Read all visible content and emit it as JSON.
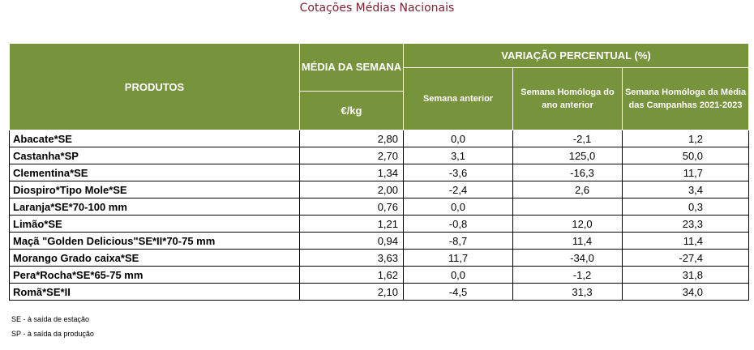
{
  "title": "Cotações Médias Nacionais",
  "headers": {
    "produtos": "PRODUTOS",
    "media_semana": "MÉDIA DA SEMANA",
    "unit": "€/kg",
    "variacao": "VARIAÇÃO PERCENTUAL (%)",
    "semana_anterior": "Semana anterior",
    "semana_homologa": "Semana Homóloga do ano anterior",
    "semana_homologa_media": "Semana Homóloga da Média das Campanhas 2021-2023"
  },
  "rows": [
    {
      "produto": "Abacate*SE",
      "media": "2,80",
      "sem_ant": "0,0",
      "homologa": "-2,1",
      "homologa_media": "1,2"
    },
    {
      "produto": "Castanha*SP",
      "media": "2,70",
      "sem_ant": "3,1",
      "homologa": "125,0",
      "homologa_media": "50,0"
    },
    {
      "produto": "Clementina*SE",
      "media": "1,34",
      "sem_ant": "-3,6",
      "homologa": "-16,3",
      "homologa_media": "11,7"
    },
    {
      "produto": "Diospiro*Tipo Mole*SE",
      "media": "2,00",
      "sem_ant": "-2,4",
      "homologa": "2,6",
      "homologa_media": "3,4"
    },
    {
      "produto": "Laranja*SE*70-100 mm",
      "media": "0,76",
      "sem_ant": "0,0",
      "homologa": "",
      "homologa_media": "0,3"
    },
    {
      "produto": "Limão*SE",
      "media": "1,21",
      "sem_ant": "-0,8",
      "homologa": "12,0",
      "homologa_media": "23,3"
    },
    {
      "produto": "Maçã \"Golden Delicious\"SE*II*70-75 mm",
      "media": "0,94",
      "sem_ant": "-8,7",
      "homologa": "11,4",
      "homologa_media": "11,4"
    },
    {
      "produto": "Morango Grado caixa*SE",
      "media": "3,63",
      "sem_ant": "11,7",
      "homologa": "-34,0",
      "homologa_media": "-27,4"
    },
    {
      "produto": "Pera*Rocha*SE*65-75 mm",
      "media": "1,62",
      "sem_ant": "0,0",
      "homologa": "-1,2",
      "homologa_media": "31,8"
    },
    {
      "produto": "Romã*SE*II",
      "media": "2,10",
      "sem_ant": "-4,5",
      "homologa": "31,3",
      "homologa_media": "34,0"
    }
  ],
  "notes": [
    "SE - à saída de estação",
    "SP - à saída da produção"
  ]
}
